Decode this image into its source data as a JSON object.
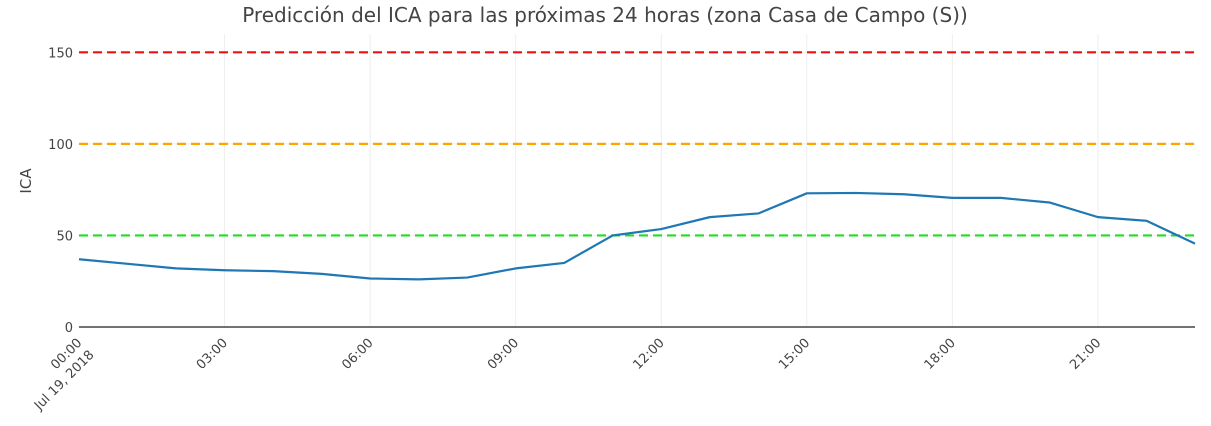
{
  "chart_data": {
    "type": "line",
    "title": "Predicción del ICA para las próximas 24 horas (zona Casa de Campo (S))",
    "xlabel": "",
    "ylabel": "ICA",
    "x_tick_labels": [
      [
        "00:00",
        "Jul 19, 2018"
      ],
      [
        "03:00"
      ],
      [
        "06:00"
      ],
      [
        "09:00"
      ],
      [
        "12:00"
      ],
      [
        "15:00"
      ],
      [
        "18:00"
      ],
      [
        "21:00"
      ]
    ],
    "x_tick_hours": [
      0,
      3,
      6,
      9,
      12,
      15,
      18,
      21
    ],
    "y_ticks": [
      0,
      50,
      100,
      150
    ],
    "xlim_hours": [
      0,
      23
    ],
    "ylim": [
      0,
      160
    ],
    "grid": true,
    "series": [
      {
        "color": "#1f77b4",
        "x_hours": [
          0,
          1,
          2,
          3,
          4,
          5,
          6,
          7,
          8,
          9,
          10,
          11,
          12,
          13,
          14,
          15,
          16,
          17,
          18,
          19,
          20,
          21,
          22,
          23
        ],
        "values": [
          37,
          34.5,
          32,
          31,
          30.5,
          29,
          26.5,
          26,
          27,
          32,
          35,
          50,
          53.5,
          60,
          62,
          73,
          73.2,
          72.5,
          70.5,
          70.5,
          68,
          60,
          58,
          45.5
        ]
      }
    ],
    "thresholds": [
      {
        "value": 50,
        "color": "#22dd22"
      },
      {
        "value": 100,
        "color": "#ffa500"
      },
      {
        "value": 150,
        "color": "#ee1111"
      }
    ]
  }
}
